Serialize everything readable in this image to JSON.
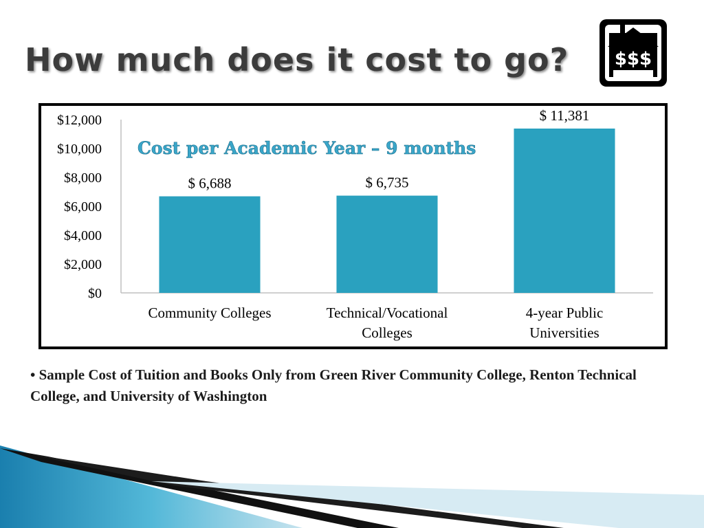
{
  "slide": {
    "title": "How much does it cost to go?",
    "logo_text": "$$$",
    "note": "• Sample Cost of Tuition and Books Only from Green River Community College, Renton Technical College, and University of Washington"
  },
  "chart_data": {
    "type": "bar",
    "title": "Cost per Academic Year – 9 months",
    "categories": [
      [
        "Community Colleges"
      ],
      [
        "Technical/Vocational",
        "Colleges"
      ],
      [
        "4-year Public",
        "Universities"
      ]
    ],
    "values": [
      6688,
      6735,
      11381
    ],
    "data_labels": [
      "$ 6,688",
      "$ 6,735",
      "$ 11,381"
    ],
    "ylim": [
      0,
      12000
    ],
    "yticks": [
      0,
      2000,
      4000,
      6000,
      8000,
      10000,
      12000
    ],
    "ytick_labels": [
      "$0",
      "$2,000",
      "$4,000",
      "$6,000",
      "$8,000",
      "$10,000",
      "$12,000"
    ],
    "grid": false,
    "bar_color": "#2aa1bf"
  }
}
